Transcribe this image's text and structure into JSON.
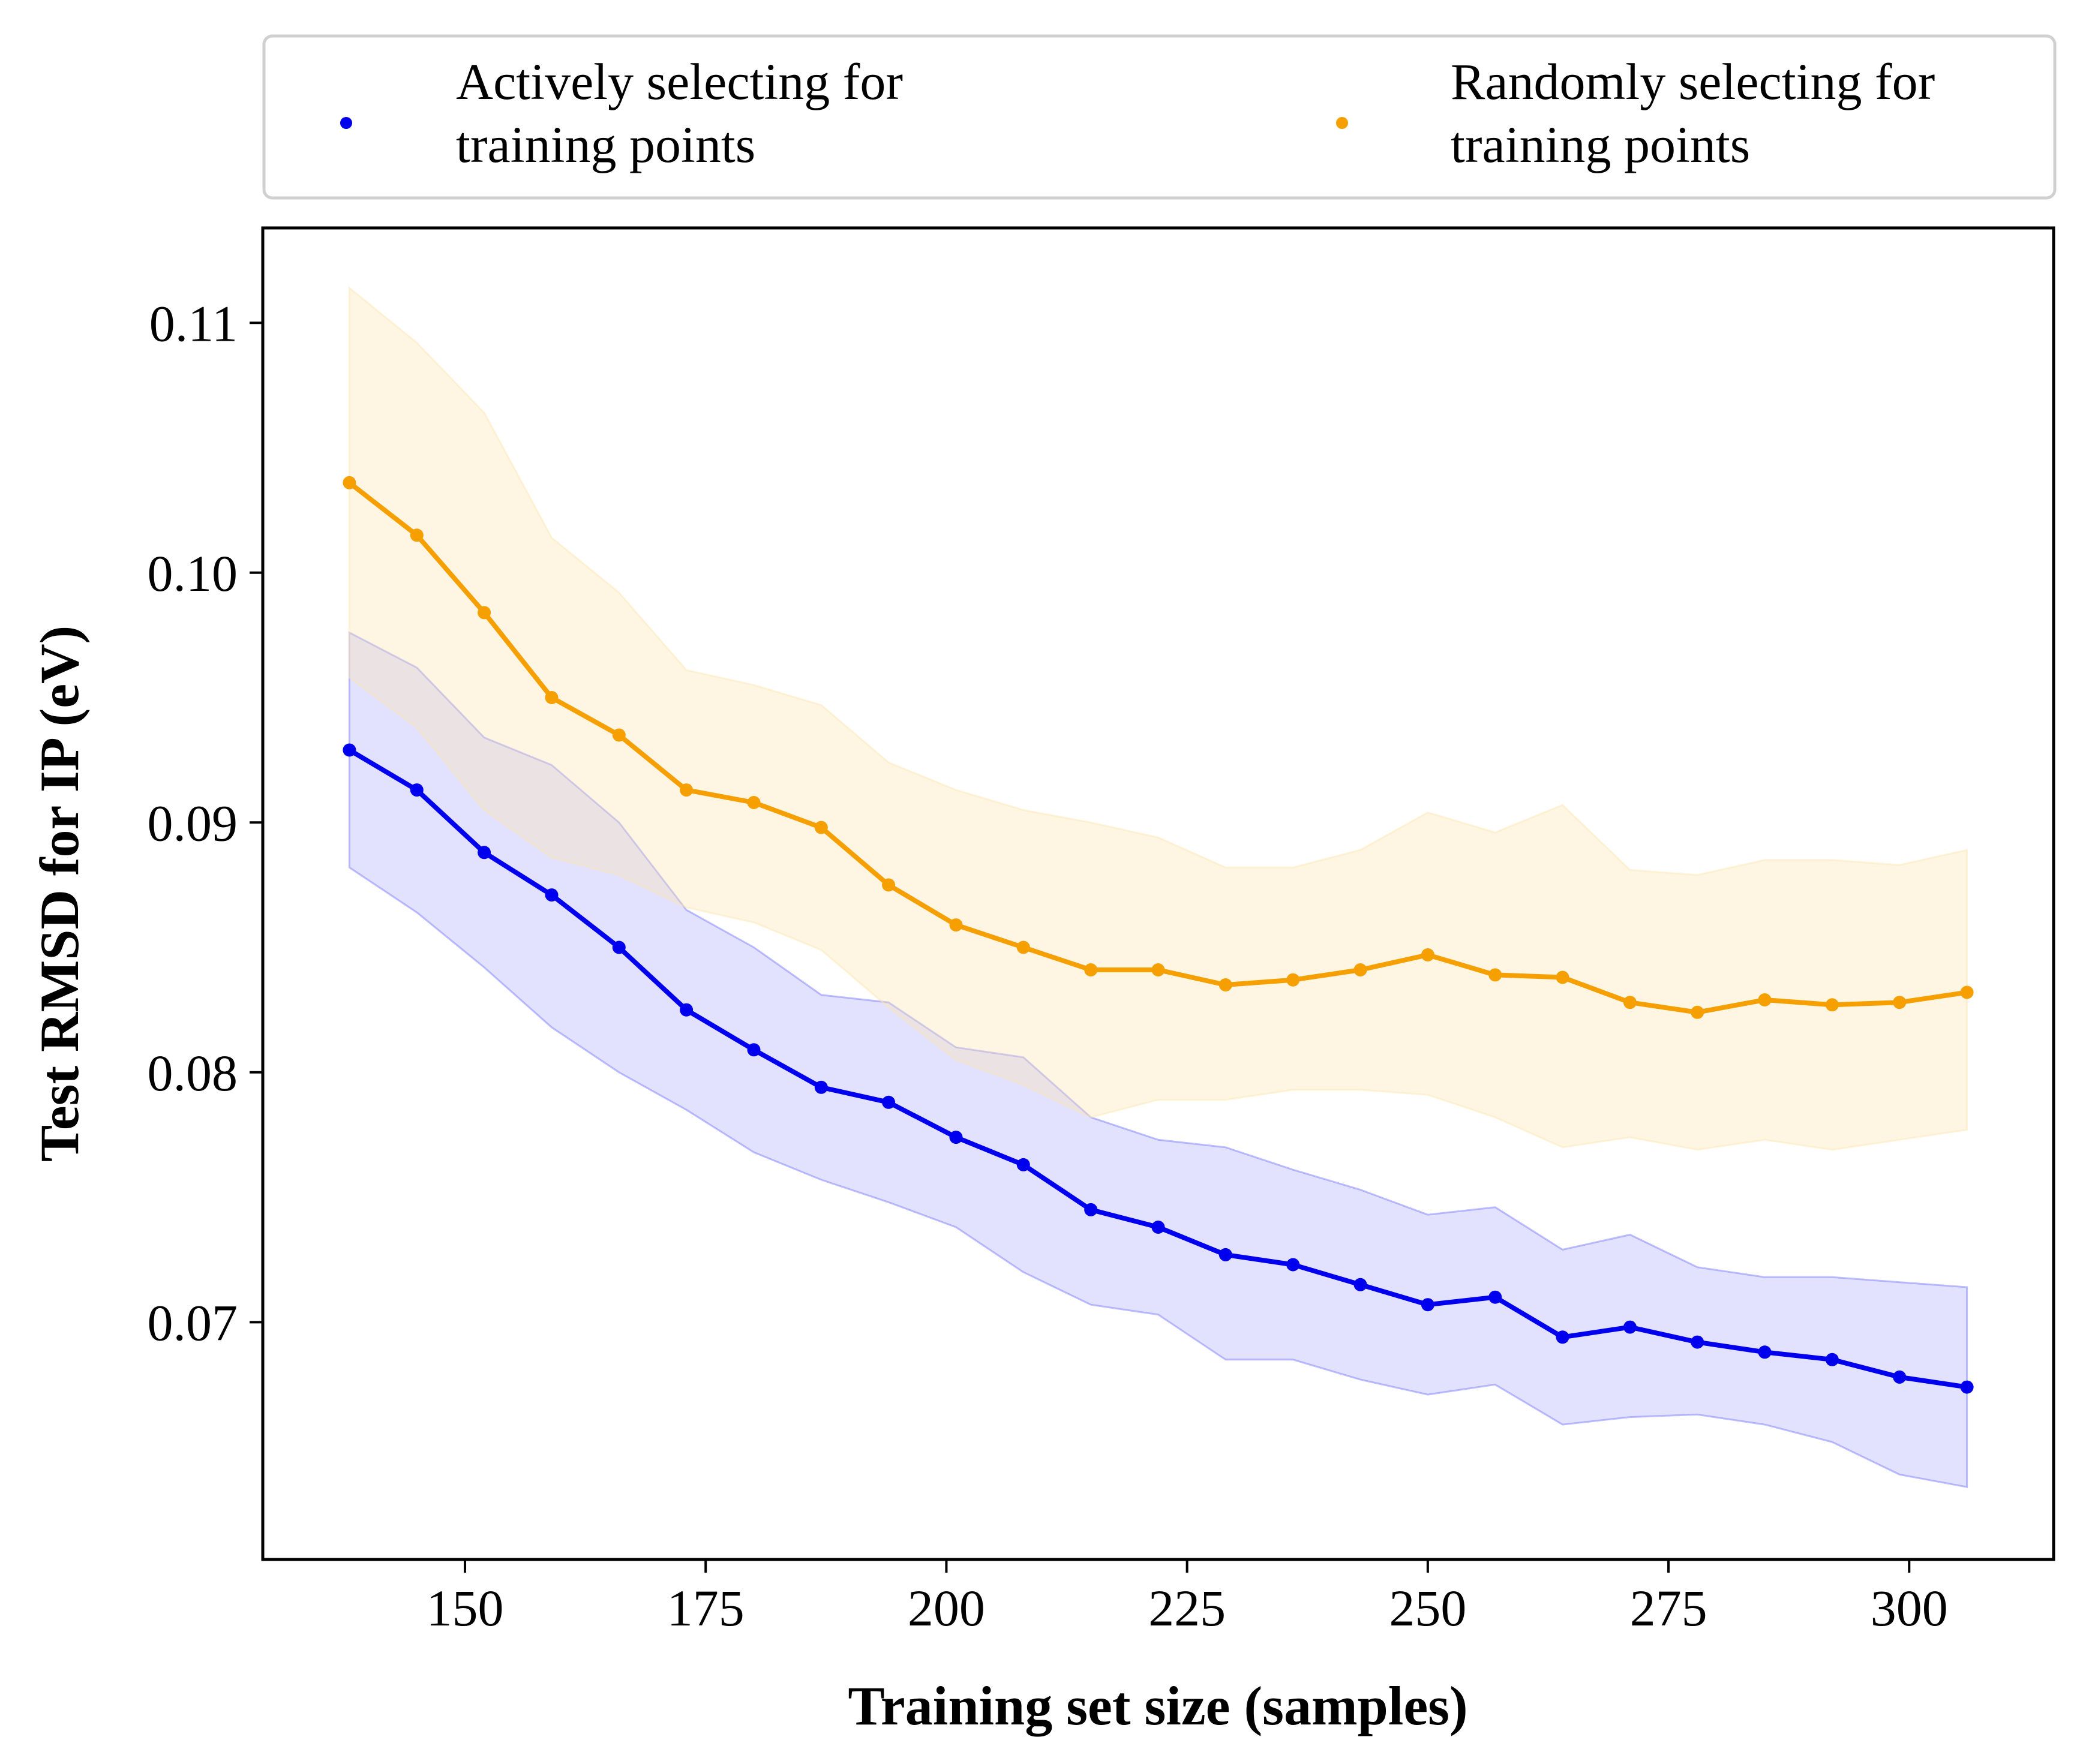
{
  "chart_data": {
    "type": "line",
    "xlabel": "Training set size (samples)",
    "ylabel": "Test RMSD for IP (eV)",
    "xlim": [
      129,
      315
    ],
    "ylim": [
      0.0605,
      0.1138
    ],
    "x_ticks": [
      150,
      175,
      200,
      225,
      250,
      275,
      300
    ],
    "y_ticks": [
      0.07,
      0.08,
      0.09,
      0.1,
      0.11
    ],
    "x_tick_labels": [
      "150",
      "175",
      "200",
      "225",
      "250",
      "275",
      "300"
    ],
    "y_tick_labels": [
      "0.07",
      "0.08",
      "0.09",
      "0.10",
      "0.11"
    ],
    "grid": false,
    "legend": {
      "position": "top-outside",
      "columns": 2
    },
    "x": [
      138,
      145,
      152,
      159,
      166,
      173,
      180,
      187,
      194,
      201,
      208,
      215,
      222,
      229,
      236,
      243,
      250,
      257,
      264,
      271,
      278,
      285,
      292,
      299,
      306
    ],
    "series": [
      {
        "name": "Actively selecting for training points",
        "name_lines": [
          "Actively selecting for",
          "training points"
        ],
        "color": "#0000ee",
        "band_color": "#7070ff",
        "values": [
          0.0929,
          0.0913,
          0.0888,
          0.0871,
          0.085,
          0.0825,
          0.0809,
          0.0794,
          0.0788,
          0.0774,
          0.0763,
          0.0745,
          0.0738,
          0.0727,
          0.0723,
          0.0715,
          0.0707,
          0.071,
          0.0694,
          0.0698,
          0.0692,
          0.0688,
          0.0685,
          0.0678,
          0.0674
        ],
        "upper": [
          0.0976,
          0.0962,
          0.0934,
          0.0923,
          0.09,
          0.0865,
          0.085,
          0.0831,
          0.0828,
          0.081,
          0.0806,
          0.0782,
          0.0773,
          0.077,
          0.0761,
          0.0753,
          0.0743,
          0.0746,
          0.0729,
          0.0735,
          0.0722,
          0.0718,
          0.0718,
          0.0716,
          0.0714
        ],
        "lower": [
          0.0882,
          0.0864,
          0.0842,
          0.0818,
          0.08,
          0.0785,
          0.0768,
          0.0757,
          0.0748,
          0.0738,
          0.072,
          0.0707,
          0.0703,
          0.0685,
          0.0685,
          0.0677,
          0.0671,
          0.0675,
          0.0659,
          0.0662,
          0.0663,
          0.0659,
          0.0652,
          0.0639,
          0.0634
        ]
      },
      {
        "name": "Randomly selecting for training points",
        "name_lines": [
          "Randomly selecting for",
          "training points"
        ],
        "color": "#f5a000",
        "band_color": "#fde4b0",
        "values": [
          0.1036,
          0.1015,
          0.0984,
          0.095,
          0.0935,
          0.0913,
          0.0908,
          0.0898,
          0.0875,
          0.0859,
          0.085,
          0.0841,
          0.0841,
          0.0835,
          0.0837,
          0.0841,
          0.0847,
          0.0839,
          0.0838,
          0.0828,
          0.0824,
          0.0829,
          0.0827,
          0.0828,
          0.0832
        ],
        "upper": [
          0.1114,
          0.1092,
          0.1064,
          0.1014,
          0.0992,
          0.0961,
          0.0955,
          0.0947,
          0.0924,
          0.0913,
          0.0905,
          0.09,
          0.0894,
          0.0882,
          0.0882,
          0.0889,
          0.0904,
          0.0896,
          0.0907,
          0.0881,
          0.0879,
          0.0885,
          0.0885,
          0.0883,
          0.0889
        ],
        "lower": [
          0.0958,
          0.0938,
          0.0905,
          0.0886,
          0.0879,
          0.0866,
          0.086,
          0.0849,
          0.0826,
          0.0805,
          0.0795,
          0.0782,
          0.0789,
          0.0789,
          0.0793,
          0.0793,
          0.0791,
          0.0782,
          0.077,
          0.0774,
          0.0769,
          0.0773,
          0.0769,
          0.0773,
          0.0777
        ]
      }
    ]
  }
}
